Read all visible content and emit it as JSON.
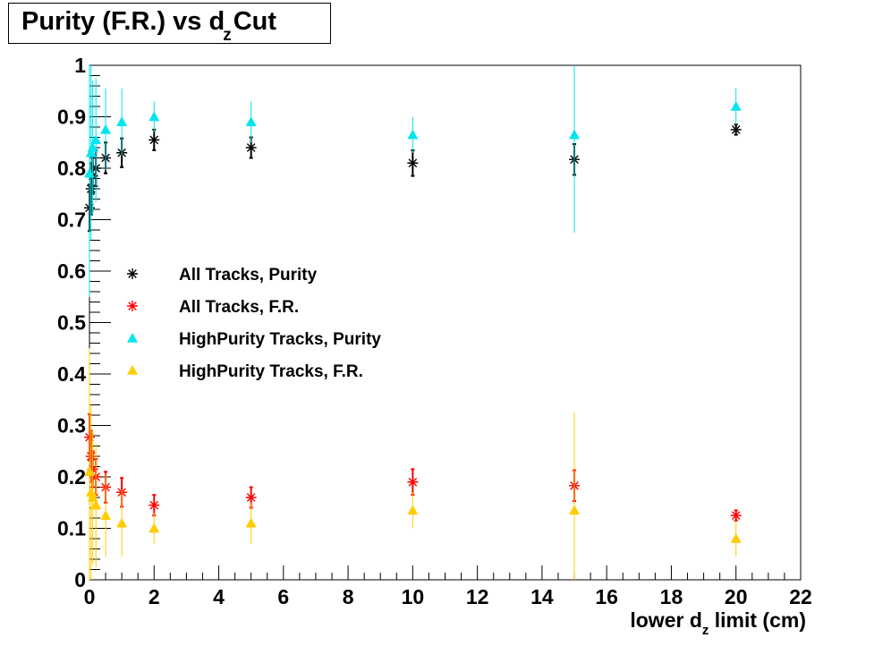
{
  "chart_data": {
    "type": "scatter",
    "title": {
      "pre": "Purity (F.R.) vs d",
      "sub": "z",
      "post": "Cut"
    },
    "xlabel": {
      "pre": "lower d",
      "sub": "z",
      "post": " limit (cm)"
    },
    "ylabel": "",
    "xlim": [
      0,
      22
    ],
    "ylim": [
      0,
      1
    ],
    "xticks": [
      0,
      2,
      4,
      6,
      8,
      10,
      12,
      14,
      16,
      18,
      20,
      22
    ],
    "yticks": [
      0,
      0.1,
      0.2,
      0.3,
      0.4,
      0.5,
      0.6,
      0.7,
      0.8,
      0.9,
      1
    ],
    "ytick_labels": [
      "0",
      "0.1",
      "0.2",
      "0.3",
      "0.4",
      "0.5",
      "0.6",
      "0.7",
      "0.8",
      "0.9",
      "1"
    ],
    "grid": false,
    "legend_position": "center-left",
    "series": [
      {
        "name": "All Tracks, Purity",
        "marker": "star",
        "color": "#000000",
        "x": [
          0,
          0.05,
          0.1,
          0.2,
          0.5,
          1,
          2,
          5,
          10,
          15,
          20
        ],
        "y": [
          0.723,
          0.76,
          0.785,
          0.8,
          0.82,
          0.83,
          0.855,
          0.84,
          0.81,
          0.817,
          0.875
        ],
        "err": [
          0.045,
          0.05,
          0.035,
          0.035,
          0.03,
          0.028,
          0.02,
          0.02,
          0.025,
          0.03,
          0.01
        ]
      },
      {
        "name": "All Tracks, F.R.",
        "marker": "star",
        "color": "#ff0000",
        "x": [
          0,
          0.05,
          0.1,
          0.2,
          0.5,
          1,
          2,
          5,
          10,
          15,
          20
        ],
        "y": [
          0.277,
          0.24,
          0.215,
          0.2,
          0.18,
          0.17,
          0.145,
          0.16,
          0.19,
          0.183,
          0.125
        ],
        "err": [
          0.045,
          0.05,
          0.035,
          0.035,
          0.03,
          0.028,
          0.02,
          0.02,
          0.025,
          0.03,
          0.01
        ]
      },
      {
        "name": "HighPurity Tracks, Purity",
        "marker": "triangle",
        "color": "#00e5ee",
        "x": [
          0,
          0.05,
          0.1,
          0.2,
          0.5,
          1,
          2,
          5,
          10,
          15,
          20
        ],
        "y": [
          0.79,
          0.83,
          0.84,
          0.855,
          0.875,
          0.89,
          0.9,
          0.89,
          0.865,
          0.865,
          0.92
        ],
        "err": [
          0.24,
          0.17,
          0.13,
          0.12,
          0.08,
          0.065,
          0.03,
          0.04,
          0.035,
          0.19,
          0.035
        ]
      },
      {
        "name": "HighPurity Tracks, F.R.",
        "marker": "triangle",
        "color": "#ffcc00",
        "x": [
          0,
          0.05,
          0.1,
          0.2,
          0.5,
          1,
          2,
          5,
          10,
          15,
          20
        ],
        "y": [
          0.21,
          0.17,
          0.16,
          0.145,
          0.125,
          0.11,
          0.1,
          0.11,
          0.135,
          0.135,
          0.08
        ],
        "err": [
          0.24,
          0.17,
          0.13,
          0.12,
          0.08,
          0.065,
          0.03,
          0.04,
          0.035,
          0.19,
          0.035
        ]
      }
    ]
  }
}
